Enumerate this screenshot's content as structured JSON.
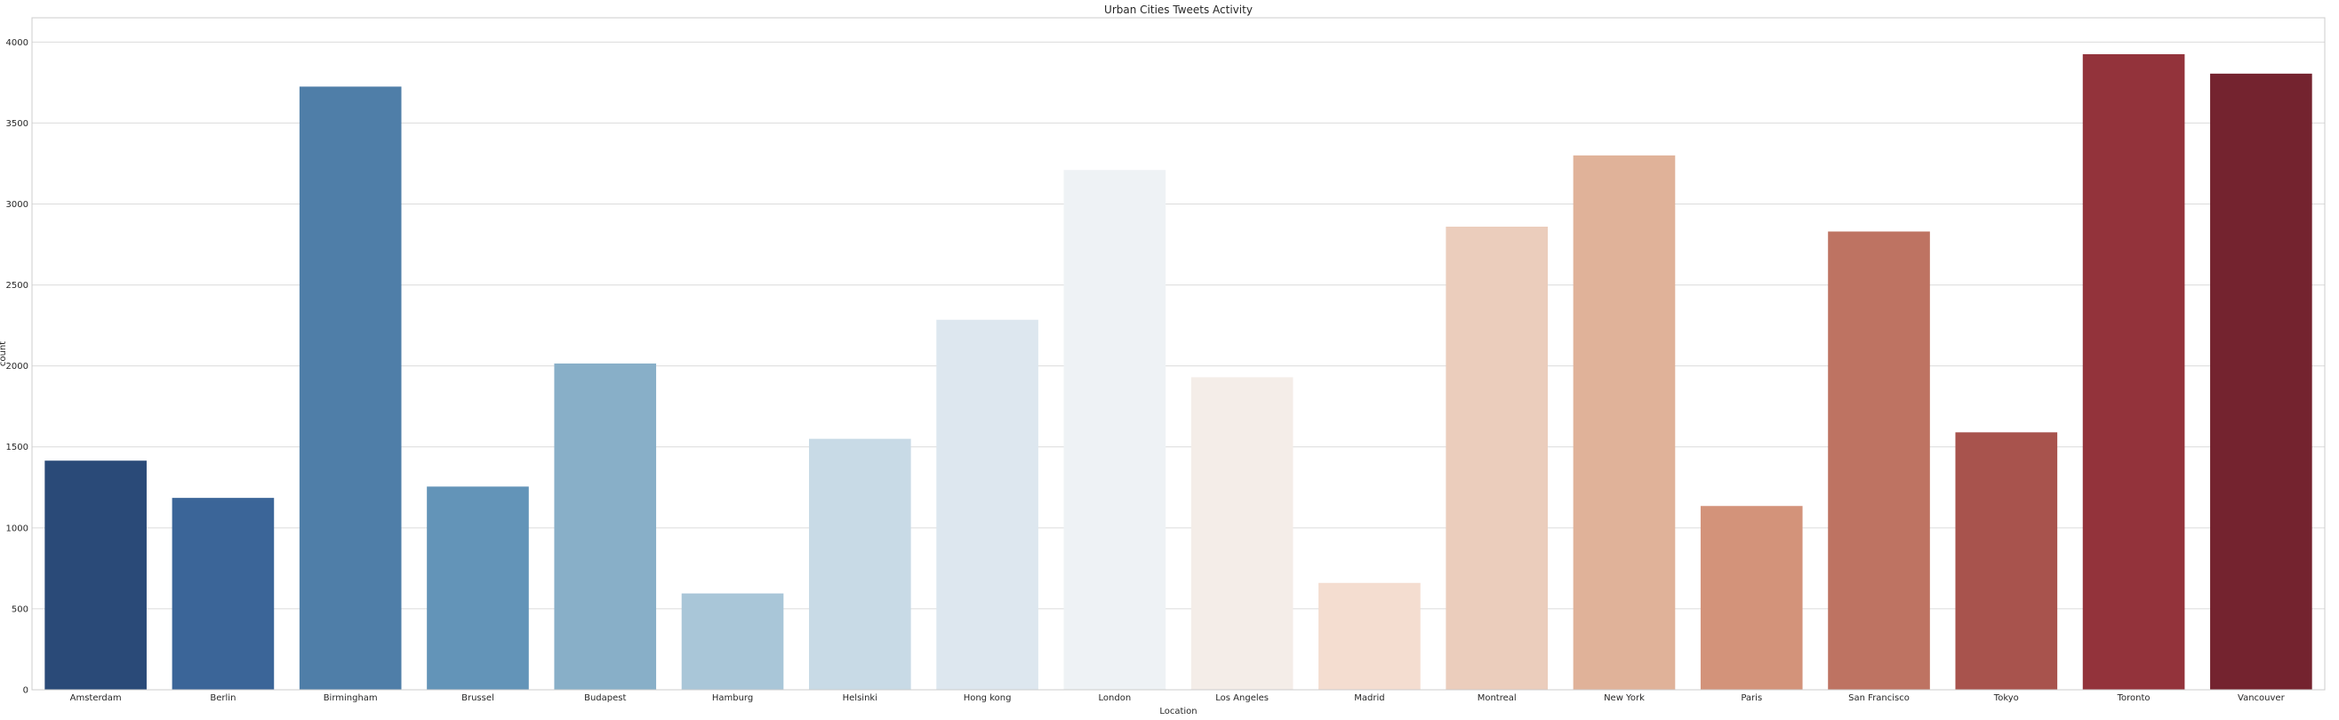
{
  "chart_data": {
    "type": "bar",
    "title": "Urban Cities Tweets Activity",
    "xlabel": "Location",
    "ylabel": "count",
    "ylim": [
      0,
      4150
    ],
    "yticks": [
      0,
      500,
      1000,
      1500,
      2000,
      2500,
      3000,
      3500,
      4000
    ],
    "grid": true,
    "categories": [
      "Amsterdam",
      "Berlin",
      "Birmingham",
      "Brussel",
      "Budapest",
      "Hamburg",
      "Helsinki",
      "Hong kong",
      "London",
      "Los Angeles",
      "Madrid",
      "Montreal",
      "New York",
      "Paris",
      "San Francisco",
      "Tokyo",
      "Toronto",
      "Vancouver"
    ],
    "values": [
      1415,
      1185,
      3725,
      1255,
      2015,
      595,
      1550,
      2285,
      3210,
      1930,
      660,
      2860,
      3300,
      1135,
      2830,
      1590,
      3925,
      3805
    ],
    "colors": [
      "#2a4a78",
      "#3b6598",
      "#4f7ea8",
      "#6394b8",
      "#88afc8",
      "#a9c6d8",
      "#c8dae6",
      "#dde7ef",
      "#eef2f5",
      "#f4ede8",
      "#f4ddd0",
      "#ebcdbc",
      "#e0b299",
      "#d3937a",
      "#be7362",
      "#a8534d",
      "#93333b",
      "#74232f"
    ]
  }
}
